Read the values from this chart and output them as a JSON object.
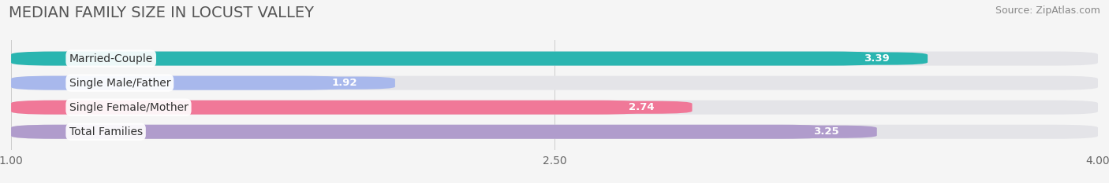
{
  "title": "MEDIAN FAMILY SIZE IN LOCUST VALLEY",
  "source": "Source: ZipAtlas.com",
  "categories": [
    "Married-Couple",
    "Single Male/Father",
    "Single Female/Mother",
    "Total Families"
  ],
  "values": [
    3.39,
    1.92,
    2.74,
    3.25
  ],
  "bar_colors": [
    "#2ab5b0",
    "#a8b8ec",
    "#f07898",
    "#b09ccc"
  ],
  "background_color": "#f5f5f5",
  "plot_bg_color": "#f5f5f5",
  "track_color": "#e4e4e8",
  "xlim_min": 1.0,
  "xlim_max": 4.0,
  "xticks": [
    1.0,
    2.5,
    4.0
  ],
  "bar_height": 0.58,
  "title_fontsize": 14,
  "label_fontsize": 10,
  "value_fontsize": 9.5,
  "source_fontsize": 9
}
